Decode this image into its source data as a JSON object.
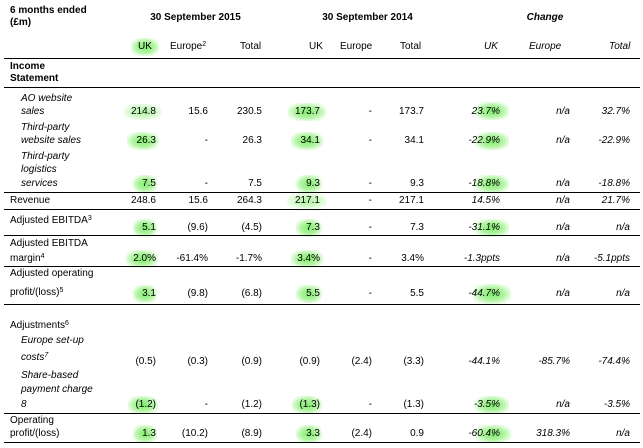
{
  "header": {
    "period_label_1": "6 months ended",
    "period_label_2": "(£m)",
    "col_group_2015": "30 September 2015",
    "col_group_2014": "30 September 2014",
    "col_group_change": "Change",
    "cols": {
      "uk_2015": "UK",
      "europe_2015": "Europe",
      "europe_2015_note": "2",
      "total_2015": "Total",
      "uk_2014": "UK",
      "europe_2014": "Europe",
      "total_2014": "Total",
      "uk_change": "UK",
      "europe_change": "Europe",
      "total_change": "Total"
    }
  },
  "section_income": {
    "line1": "Income",
    "line2": "Statement"
  },
  "rows": {
    "ao_sales": {
      "label1": "AO website",
      "label2": "sales",
      "uk15": "214.8",
      "eu15": "15.6",
      "tot15": "230.5",
      "uk14": "173.7",
      "eu14": "-",
      "tot14": "173.7",
      "ukc": "23.7%",
      "euc": "n/a",
      "totc": "32.7%"
    },
    "third_party_sales": {
      "label1": "Third-party",
      "label2": "website sales",
      "uk15": "26.3",
      "eu15": "-",
      "tot15": "26.3",
      "uk14": "34.1",
      "eu14": "-",
      "tot14": "34.1",
      "ukc": "-22.9%",
      "euc": "n/a",
      "totc": "-22.9%"
    },
    "third_party_logistics": {
      "label1": "Third-party",
      "label2": "logistics",
      "label3": "services",
      "uk15": "7.5",
      "eu15": "-",
      "tot15": "7.5",
      "uk14": "9.3",
      "eu14": "-",
      "tot14": "9.3",
      "ukc": "-18.8%",
      "euc": "n/a",
      "totc": "-18.8%"
    },
    "revenue": {
      "label1": "Revenue",
      "uk15": "248.6",
      "eu15": "15.6",
      "tot15": "264.3",
      "uk14": "217.1",
      "eu14": "-",
      "tot14": "217.1",
      "ukc": "14.5%",
      "euc": "n/a",
      "totc": "21.7%"
    },
    "adj_ebitda": {
      "label1": "Adjusted EBITDA",
      "note": "3",
      "uk15": "5.1",
      "eu15": "(9.6)",
      "tot15": "(4.5)",
      "uk14": "7.3",
      "eu14": "-",
      "tot14": "7.3",
      "ukc": "-31.1%",
      "euc": "n/a",
      "totc": "n/a"
    },
    "adj_ebitda_margin": {
      "label1": "Adjusted EBITDA",
      "label2": "margin",
      "note": "4",
      "uk15": "2.0%",
      "eu15": "-61.4%",
      "tot15": "-1.7%",
      "uk14": "3.4%",
      "eu14": "-",
      "tot14": "3.4%",
      "ukc": "-1.3ppts",
      "euc": "n/a",
      "totc": "-5.1ppts"
    },
    "adj_operating": {
      "label1": "Adjusted operating",
      "label2": "profit/(loss)",
      "note": "5",
      "uk15": "3.1",
      "eu15": "(9.8)",
      "tot15": "(6.8)",
      "uk14": "5.5",
      "eu14": "-",
      "tot14": "5.5",
      "ukc": "-44.7%",
      "euc": "n/a",
      "totc": "n/a"
    },
    "adjustments": {
      "label1": "Adjustments",
      "note": "6"
    },
    "europe_setup": {
      "label1": "Europe set-up",
      "label2": "costs",
      "note": "7",
      "uk15": "(0.5)",
      "eu15": "(0.3)",
      "tot15": "(0.9)",
      "uk14": "(0.9)",
      "eu14": "(2.4)",
      "tot14": "(3.3)",
      "ukc": "-44.1%",
      "euc": "-85.7%",
      "totc": "-74.4%"
    },
    "share_based": {
      "label1": "Share-based",
      "label2": "payment charge",
      "label3": "8",
      "uk15": "(1.2)",
      "eu15": "-",
      "tot15": "(1.2)",
      "uk14": "(1.3)",
      "eu14": "-",
      "tot14": "(1.3)",
      "ukc": "-3.5%",
      "euc": "n/a",
      "totc": "-3.5%"
    },
    "operating": {
      "label1": "Operating",
      "label2": "profit/(loss)",
      "uk15": "1.3",
      "eu15": "(10.2)",
      "tot15": "(8.9)",
      "uk14": "3.3",
      "eu14": "(2.4)",
      "tot14": "0.9",
      "ukc": "-60.4%",
      "euc": "318.3%",
      "totc": "n/a"
    }
  },
  "colors": {
    "highlight": "#8CEB78",
    "rule": "#000000"
  }
}
